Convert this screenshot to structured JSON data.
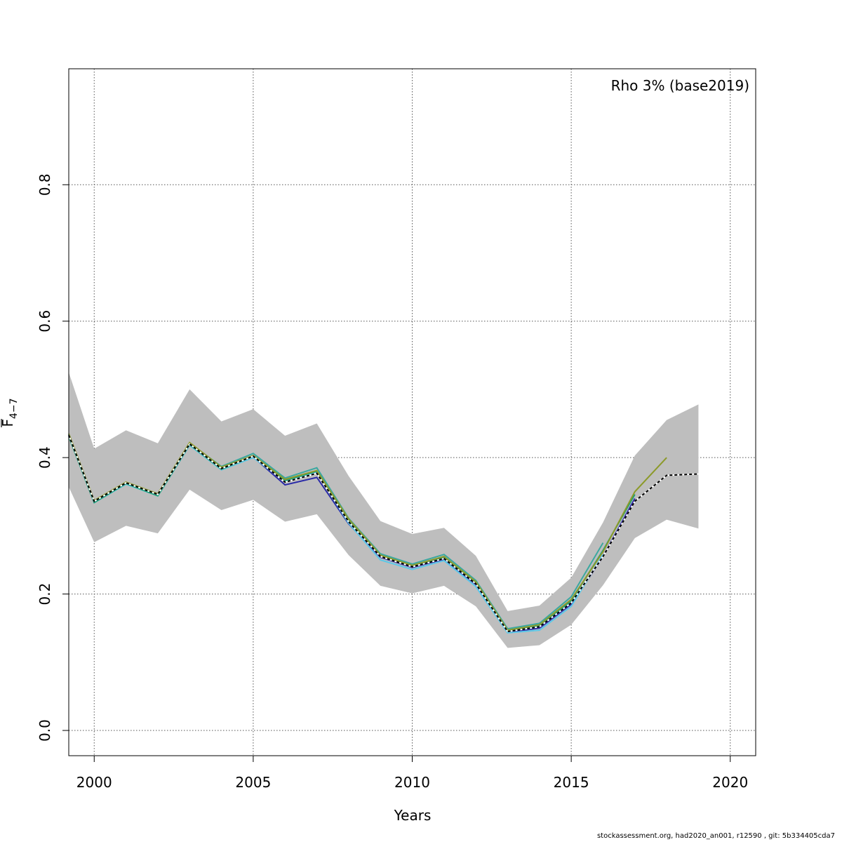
{
  "chart_data": {
    "type": "line",
    "title": "",
    "annotation": "Rho 3% (base2019)",
    "xlabel": "Years",
    "ylabel_main": "F",
    "ylabel_sub": "4−7",
    "xlim": [
      1999.2,
      2020.8
    ],
    "ylim": [
      -0.037,
      0.97
    ],
    "xticks": [
      2000,
      2005,
      2010,
      2015,
      2020
    ],
    "yticks": [
      0.0,
      0.2,
      0.4,
      0.6,
      0.8
    ],
    "xtick_labels": [
      "2000",
      "2005",
      "2010",
      "2015",
      "2020"
    ],
    "ytick_labels": [
      "0.0",
      "0.2",
      "0.4",
      "0.6",
      "0.8"
    ],
    "grid": true,
    "band": {
      "name": "confidence interval",
      "color": "#bebebe",
      "x": [
        1999.2,
        2000,
        2001,
        2002,
        2003,
        2004,
        2005,
        2006,
        2007,
        2008,
        2009,
        2010,
        2011,
        2012,
        2013,
        2014,
        2015,
        2016,
        2017,
        2018,
        2019
      ],
      "upper": [
        0.525,
        0.413,
        0.44,
        0.421,
        0.5,
        0.453,
        0.471,
        0.432,
        0.45,
        0.373,
        0.307,
        0.288,
        0.297,
        0.256,
        0.175,
        0.183,
        0.224,
        0.305,
        0.403,
        0.455,
        0.478
      ],
      "lower": [
        0.357,
        0.276,
        0.3,
        0.289,
        0.353,
        0.323,
        0.338,
        0.306,
        0.317,
        0.257,
        0.212,
        0.201,
        0.212,
        0.182,
        0.121,
        0.125,
        0.155,
        0.213,
        0.282,
        0.309,
        0.296
      ]
    },
    "series": [
      {
        "color": "#2a2aa8",
        "dashed": false,
        "x": [
          1999.2,
          2000,
          2001,
          2002,
          2003,
          2004,
          2005,
          2006,
          2007,
          2008,
          2009,
          2010,
          2011,
          2012,
          2013,
          2014,
          2015,
          2016,
          2017
        ],
        "values": [
          0.432,
          0.335,
          0.362,
          0.345,
          0.42,
          0.383,
          0.401,
          0.36,
          0.371,
          0.303,
          0.254,
          0.239,
          0.251,
          0.214,
          0.144,
          0.15,
          0.185,
          0.255,
          0.34
        ]
      },
      {
        "color": "#5bc8e8",
        "dashed": false,
        "x": [
          1999.2,
          2000,
          2001,
          2002,
          2003,
          2004,
          2005,
          2006,
          2007,
          2008,
          2009,
          2010,
          2011,
          2012,
          2013,
          2014,
          2015,
          2016
        ],
        "values": [
          0.433,
          0.334,
          0.361,
          0.344,
          0.418,
          0.382,
          0.4,
          0.365,
          0.378,
          0.304,
          0.25,
          0.236,
          0.249,
          0.211,
          0.143,
          0.147,
          0.182,
          0.258
        ]
      },
      {
        "color": "#1b9e77",
        "dashed": false,
        "x": [
          1999.2,
          2000,
          2001,
          2002,
          2003,
          2004,
          2005,
          2006,
          2007,
          2008,
          2009,
          2010,
          2011,
          2012,
          2013,
          2014,
          2015,
          2016,
          2017
        ],
        "values": [
          0.431,
          0.334,
          0.362,
          0.344,
          0.419,
          0.383,
          0.402,
          0.366,
          0.38,
          0.308,
          0.256,
          0.241,
          0.254,
          0.217,
          0.146,
          0.154,
          0.19,
          0.264,
          0.346
        ]
      },
      {
        "color": "#3aa8a0",
        "dashed": false,
        "x": [
          1999.2,
          2000,
          2001,
          2002,
          2003,
          2004,
          2005,
          2006,
          2007,
          2008,
          2009,
          2010,
          2011,
          2012,
          2013,
          2014,
          2015,
          2016
        ],
        "values": [
          0.434,
          0.336,
          0.363,
          0.346,
          0.421,
          0.387,
          0.406,
          0.37,
          0.385,
          0.311,
          0.259,
          0.244,
          0.258,
          0.22,
          0.149,
          0.157,
          0.196,
          0.275
        ]
      },
      {
        "color": "#8c9a2a",
        "dashed": false,
        "x": [
          1999.2,
          2000,
          2001,
          2002,
          2003,
          2004,
          2005,
          2006,
          2007,
          2008,
          2009,
          2010,
          2011,
          2012,
          2013,
          2014,
          2015,
          2016,
          2017,
          2018
        ],
        "values": [
          0.435,
          0.337,
          0.364,
          0.347,
          0.422,
          0.386,
          0.403,
          0.368,
          0.381,
          0.31,
          0.257,
          0.242,
          0.255,
          0.218,
          0.147,
          0.155,
          0.192,
          0.262,
          0.35,
          0.4
        ]
      },
      {
        "color": "#000000",
        "dashed": true,
        "x": [
          1999.2,
          2000,
          2001,
          2002,
          2003,
          2004,
          2005,
          2006,
          2007,
          2008,
          2009,
          2010,
          2011,
          2012,
          2013,
          2014,
          2015,
          2016,
          2017,
          2018,
          2019
        ],
        "values": [
          0.433,
          0.336,
          0.363,
          0.346,
          0.42,
          0.384,
          0.402,
          0.364,
          0.377,
          0.306,
          0.255,
          0.24,
          0.252,
          0.215,
          0.145,
          0.152,
          0.187,
          0.255,
          0.336,
          0.374,
          0.376
        ]
      }
    ]
  },
  "footer": "stockassessment.org, had2020_an001, r12590 , git: 5b334405cda7"
}
